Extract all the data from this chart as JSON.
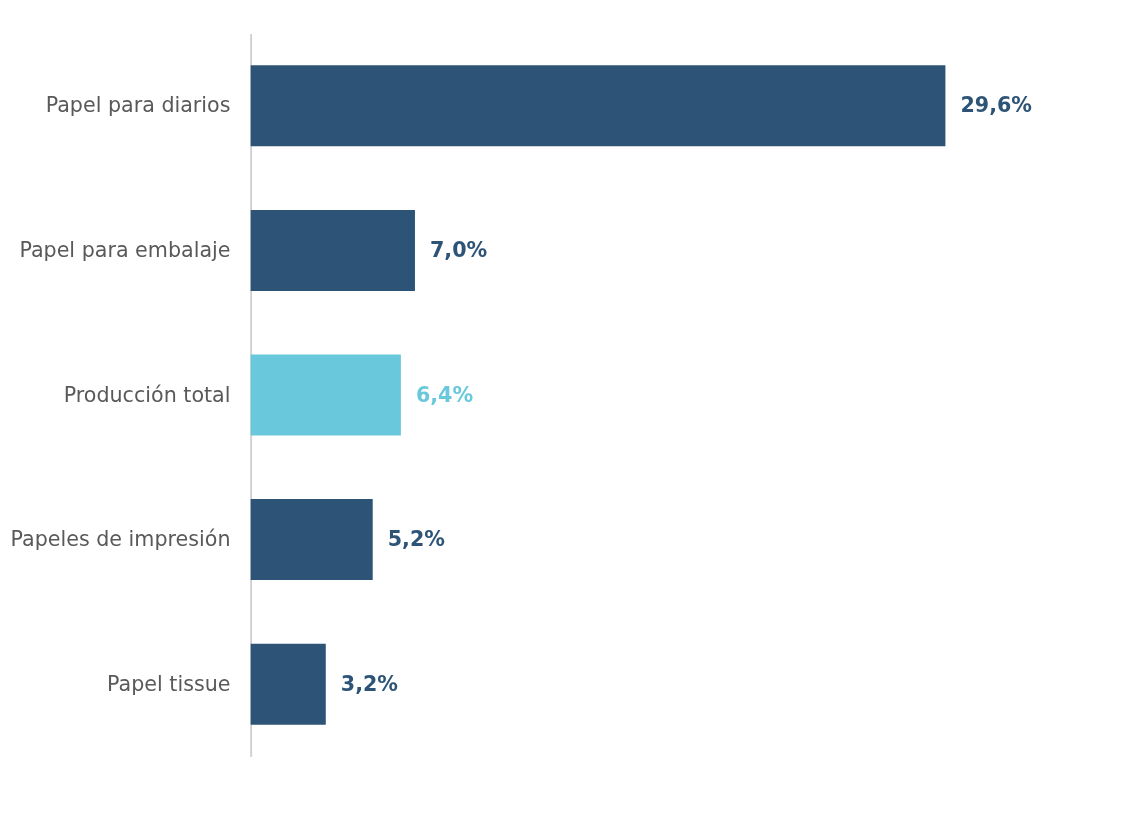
{
  "chart_data": {
    "type": "bar",
    "orientation": "horizontal",
    "categories": [
      "Papel para diarios",
      "Papel para embalaje",
      "Producción total",
      "Papeles de impresión",
      "Papel tissue"
    ],
    "values": [
      29.6,
      7.0,
      6.4,
      5.2,
      3.2
    ],
    "colors": [
      "#2d5477",
      "#2d5477",
      "#69c8db",
      "#2d5477",
      "#2d5477"
    ],
    "value_labels": [
      "29,6%",
      "7,0%",
      "6,4%",
      "5,2%",
      "3,2%"
    ]
  }
}
